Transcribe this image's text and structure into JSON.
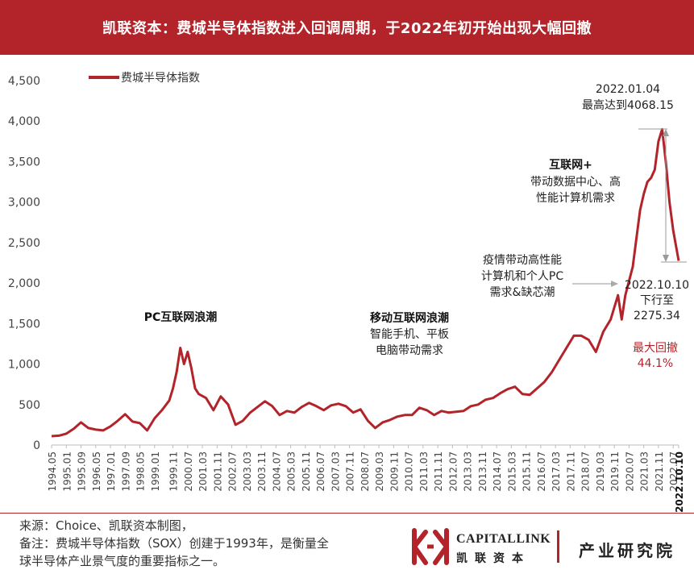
{
  "header": {
    "title": "凯联资本：费城半导体指数进入回调周期，于2022年初开始出现大幅回撤"
  },
  "chart_data": {
    "type": "line",
    "series": [
      {
        "name": "费城半导体指数",
        "color": "#b3232a",
        "points": [
          [
            "1994.05",
            110
          ],
          [
            "1994.09",
            115
          ],
          [
            "1995.01",
            140
          ],
          [
            "1995.05",
            200
          ],
          [
            "1995.09",
            280
          ],
          [
            "1996.01",
            210
          ],
          [
            "1996.05",
            190
          ],
          [
            "1996.09",
            180
          ],
          [
            "1997.01",
            230
          ],
          [
            "1997.05",
            300
          ],
          [
            "1997.09",
            380
          ],
          [
            "1998.01",
            290
          ],
          [
            "1998.05",
            270
          ],
          [
            "1998.09",
            180
          ],
          [
            "1999.01",
            330
          ],
          [
            "1999.05",
            430
          ],
          [
            "1999.09",
            550
          ],
          [
            "1999.11",
            700
          ],
          [
            "2000.01",
            900
          ],
          [
            "2000.03",
            1200
          ],
          [
            "2000.05",
            1000
          ],
          [
            "2000.07",
            1150
          ],
          [
            "2000.09",
            950
          ],
          [
            "2000.11",
            700
          ],
          [
            "2001.01",
            630
          ],
          [
            "2001.05",
            580
          ],
          [
            "2001.09",
            430
          ],
          [
            "2002.01",
            600
          ],
          [
            "2002.05",
            500
          ],
          [
            "2002.09",
            250
          ],
          [
            "2003.01",
            300
          ],
          [
            "2003.05",
            400
          ],
          [
            "2003.09",
            470
          ],
          [
            "2004.01",
            540
          ],
          [
            "2004.05",
            480
          ],
          [
            "2004.09",
            370
          ],
          [
            "2005.01",
            420
          ],
          [
            "2005.05",
            400
          ],
          [
            "2005.09",
            470
          ],
          [
            "2006.01",
            520
          ],
          [
            "2006.05",
            480
          ],
          [
            "2006.09",
            430
          ],
          [
            "2007.01",
            490
          ],
          [
            "2007.05",
            510
          ],
          [
            "2007.09",
            480
          ],
          [
            "2008.01",
            400
          ],
          [
            "2008.05",
            440
          ],
          [
            "2008.09",
            300
          ],
          [
            "2009.01",
            210
          ],
          [
            "2009.05",
            280
          ],
          [
            "2009.09",
            310
          ],
          [
            "2010.01",
            350
          ],
          [
            "2010.05",
            370
          ],
          [
            "2010.09",
            370
          ],
          [
            "2011.01",
            460
          ],
          [
            "2011.05",
            430
          ],
          [
            "2011.09",
            370
          ],
          [
            "2012.01",
            420
          ],
          [
            "2012.05",
            400
          ],
          [
            "2012.09",
            410
          ],
          [
            "2013.01",
            420
          ],
          [
            "2013.05",
            480
          ],
          [
            "2013.09",
            500
          ],
          [
            "2014.01",
            560
          ],
          [
            "2014.05",
            580
          ],
          [
            "2014.09",
            640
          ],
          [
            "2015.01",
            690
          ],
          [
            "2015.05",
            720
          ],
          [
            "2015.09",
            630
          ],
          [
            "2016.01",
            620
          ],
          [
            "2016.05",
            700
          ],
          [
            "2016.09",
            780
          ],
          [
            "2017.01",
            900
          ],
          [
            "2017.05",
            1050
          ],
          [
            "2017.09",
            1200
          ],
          [
            "2018.01",
            1350
          ],
          [
            "2018.05",
            1350
          ],
          [
            "2018.09",
            1300
          ],
          [
            "2019.01",
            1150
          ],
          [
            "2019.05",
            1400
          ],
          [
            "2019.09",
            1550
          ],
          [
            "2020.01",
            1850
          ],
          [
            "2020.03",
            1550
          ],
          [
            "2020.05",
            1850
          ],
          [
            "2020.09",
            2200
          ],
          [
            "2021.01",
            2900
          ],
          [
            "2021.03",
            3100
          ],
          [
            "2021.05",
            3250
          ],
          [
            "2021.07",
            3300
          ],
          [
            "2021.09",
            3400
          ],
          [
            "2021.11",
            3750
          ],
          [
            "2022.01",
            3900
          ],
          [
            "2022.03",
            3500
          ],
          [
            "2022.05",
            3000
          ],
          [
            "2022.07",
            2650
          ],
          [
            "2022.10",
            2275.34
          ]
        ]
      }
    ],
    "xticks": [
      "1994.05",
      "1995.01",
      "1995.09",
      "1996.05",
      "1997.01",
      "1997.09",
      "1998.05",
      "1999.01",
      "1999.11",
      "2000.07",
      "2001.03",
      "2001.11",
      "2002.07",
      "2003.03",
      "2003.11",
      "2004.07",
      "2005.03",
      "2005.11",
      "2006.07",
      "2007.03",
      "2007.11",
      "2008.07",
      "2009.03",
      "2009.11",
      "2010.07",
      "2011.03",
      "2011.11",
      "2012.07",
      "2013.03",
      "2013.11",
      "2014.07",
      "2015.03",
      "2015.11",
      "2016.07",
      "2017.03",
      "2017.11",
      "2018.07",
      "2019.03",
      "2019.11",
      "2020.07",
      "2021.03",
      "2021.11",
      "2022.07",
      "2022.10.10"
    ],
    "yticks": [
      0,
      500,
      1000,
      1500,
      2000,
      2500,
      3000,
      3500,
      4000,
      4500
    ],
    "yticklabels": [
      "0",
      "500",
      "1,000",
      "1,500",
      "2,000",
      "2,500",
      "3,000",
      "3,500",
      "4,000",
      "4,500"
    ],
    "ylim": [
      0,
      4500
    ],
    "legend": {
      "label": "费城半导体指数",
      "position": "top-left"
    },
    "annotations": {
      "pc_wave": {
        "title": "PC互联网浪潮"
      },
      "mobile_wave": {
        "title": "移动互联网浪潮",
        "line1": "智能手机、平板",
        "line2": "电脑带动需求"
      },
      "internet_plus": {
        "title": "互联网+",
        "line1": "带动数据中心、高",
        "line2": "性能计算机需求"
      },
      "pandemic": {
        "line1": "疫情带动高性能",
        "line2": "计算机和个人PC",
        "line3": "需求&缺芯潮"
      },
      "peak": {
        "date": "2022.01.04",
        "text": "最高达到4068.15"
      },
      "current": {
        "date": "2022.10.10",
        "text": "下行至",
        "value": "2275.34"
      },
      "drawdown": {
        "label": "最大回撤",
        "value": "44.1%"
      }
    }
  },
  "footer": {
    "line1": "来源：Choice、凯联资本制图，",
    "line2": "备注：费城半导体指数（SOX）创建于1993年，是衡量全",
    "line3": "球半导体产业景气度的重要指标之一。"
  },
  "logo": {
    "name": "CAPITALLINK",
    "cn": "凯联资本",
    "institute": "产业研究院"
  },
  "colors": {
    "brand": "#b3232a"
  }
}
